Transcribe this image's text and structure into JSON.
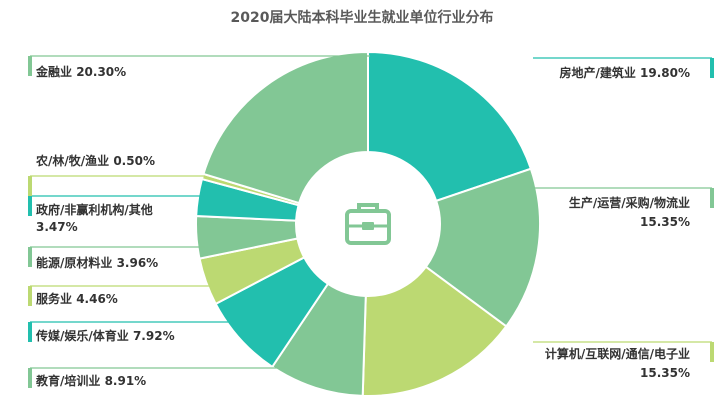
{
  "chart_data": {
    "type": "pie",
    "title": "2020届大陆本科毕业生就业单位行业分布",
    "center_icon": "briefcase-icon",
    "colors": {
      "teal": "#22bfae",
      "green": "#82c795",
      "lime": "#bcd972",
      "title": "#595959",
      "text": "#333333"
    },
    "slices": [
      {
        "label": "房地产/建筑业",
        "value": 19.8,
        "display": "19.80%",
        "color": "#22bfae"
      },
      {
        "label": "生产/运营/采购/物流业",
        "value": 15.35,
        "display": "15.35%",
        "color": "#82c795"
      },
      {
        "label": "计算机/互联网/通信/电子业",
        "value": 15.35,
        "display": "15.35%",
        "color": "#bcd972"
      },
      {
        "label": "教育/培训业",
        "value": 8.91,
        "display": "8.91%",
        "color": "#82c795"
      },
      {
        "label": "传媒/娱乐/体育业",
        "value": 7.92,
        "display": "7.92%",
        "color": "#22bfae"
      },
      {
        "label": "服务业",
        "value": 4.46,
        "display": "4.46%",
        "color": "#bcd972"
      },
      {
        "label": "能源/原材料业",
        "value": 3.96,
        "display": "3.96%",
        "color": "#82c795"
      },
      {
        "label": "政府/非赢利机构/其他",
        "value": 3.47,
        "display": "3.47%",
        "color": "#22bfae"
      },
      {
        "label": "农/林/牧/渔业",
        "value": 0.5,
        "display": "0.50%",
        "color": "#bcd972"
      },
      {
        "label": "金融业",
        "value": 20.3,
        "display": "20.30%",
        "color": "#82c795"
      }
    ]
  }
}
